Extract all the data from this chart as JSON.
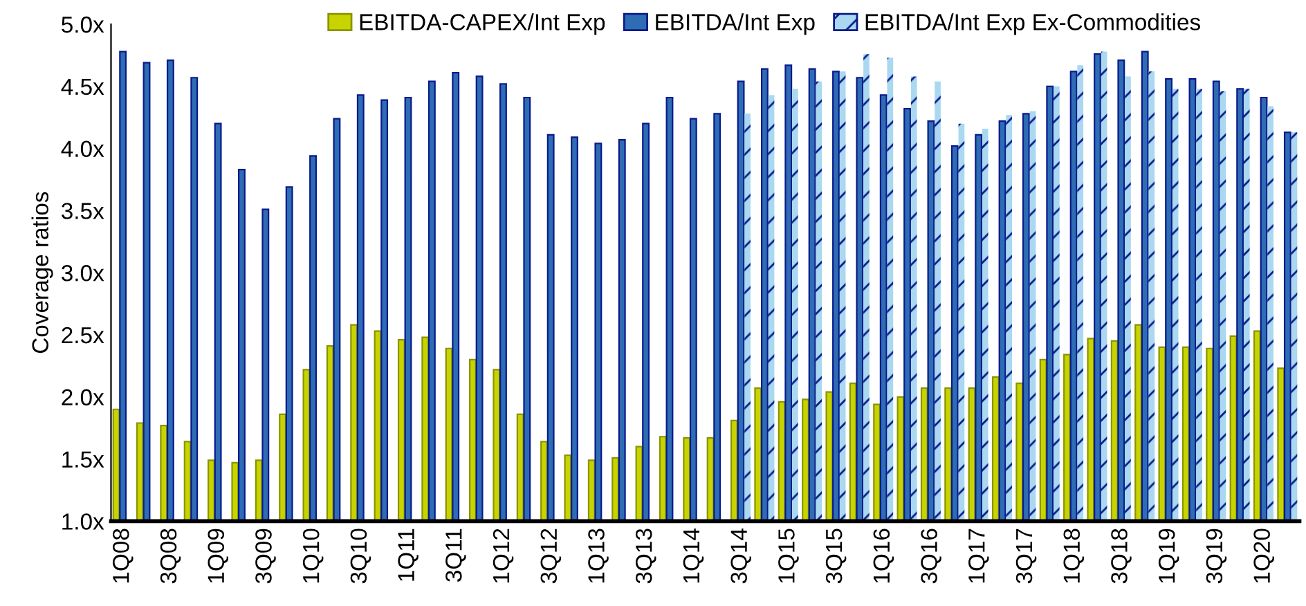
{
  "chart_data": {
    "type": "bar",
    "ylabel": "Coverage ratios",
    "categories": [
      "1Q08",
      null,
      "3Q08",
      null,
      "1Q09",
      null,
      "3Q09",
      null,
      "1Q10",
      null,
      "3Q10",
      null,
      "1Q11",
      null,
      "3Q11",
      null,
      "1Q12",
      null,
      "3Q12",
      null,
      "1Q13",
      null,
      "3Q13",
      null,
      "1Q14",
      null,
      "3Q14",
      null,
      "1Q15",
      null,
      "3Q15",
      null,
      "1Q16",
      null,
      "3Q16",
      null,
      "1Q17",
      null,
      "3Q17",
      null,
      "1Q18",
      null,
      "3Q18",
      null,
      "1Q19",
      null,
      "3Q19",
      null,
      "1Q20",
      null
    ],
    "series": [
      {
        "name": "EBITDA-CAPEX/Int Exp",
        "color": "#c8d400",
        "values": [
          1.9,
          1.79,
          1.77,
          1.64,
          1.49,
          1.47,
          1.49,
          1.86,
          2.22,
          2.41,
          2.58,
          2.53,
          2.46,
          2.48,
          2.39,
          2.3,
          2.22,
          1.86,
          1.64,
          1.53,
          1.49,
          1.51,
          1.6,
          1.68,
          1.67,
          1.67,
          1.81,
          2.07,
          1.96,
          1.98,
          2.04,
          2.11,
          1.94,
          2.0,
          2.07,
          2.07,
          2.07,
          2.16,
          2.11,
          2.3,
          2.34,
          2.47,
          2.45,
          2.58,
          2.4,
          2.4,
          2.39,
          2.49,
          2.53,
          2.23
        ]
      },
      {
        "name": "EBITDA/Int Exp",
        "color": "#2e6db4",
        "values": [
          4.78,
          4.69,
          4.71,
          4.57,
          4.2,
          3.83,
          3.51,
          3.69,
          3.94,
          4.24,
          4.43,
          4.39,
          4.41,
          4.54,
          4.61,
          4.58,
          4.52,
          4.41,
          4.11,
          4.09,
          4.04,
          4.07,
          4.2,
          4.41,
          4.24,
          4.28,
          4.54,
          4.64,
          4.67,
          4.64,
          4.62,
          4.57,
          4.43,
          4.32,
          4.22,
          4.02,
          4.11,
          4.22,
          4.28,
          4.5,
          4.62,
          4.76,
          4.71,
          4.78,
          4.56,
          4.56,
          4.54,
          4.48,
          4.41,
          4.13
        ]
      },
      {
        "name": "EBITDA/Int Exp Ex-Commodities",
        "color": "#a9d8f0",
        "values": [
          null,
          null,
          null,
          null,
          null,
          null,
          null,
          null,
          null,
          null,
          null,
          null,
          null,
          null,
          null,
          null,
          null,
          null,
          null,
          null,
          null,
          null,
          null,
          null,
          null,
          null,
          4.28,
          4.43,
          4.48,
          4.54,
          4.62,
          4.76,
          4.73,
          4.58,
          4.54,
          4.2,
          4.16,
          4.27,
          4.3,
          4.5,
          4.67,
          4.78,
          4.58,
          4.62,
          4.48,
          4.48,
          4.46,
          4.48,
          4.34,
          4.13
        ]
      }
    ],
    "ylim": [
      1.0,
      5.0
    ],
    "yticks": [
      {
        "value": 1.0,
        "label": "1.0x"
      },
      {
        "value": 1.5,
        "label": "1.5x"
      },
      {
        "value": 2.0,
        "label": "2.0x"
      },
      {
        "value": 2.5,
        "label": "2.5x"
      },
      {
        "value": 3.0,
        "label": "3.0x"
      },
      {
        "value": 3.5,
        "label": "3.5x"
      },
      {
        "value": 4.0,
        "label": "4.0x"
      },
      {
        "value": 4.5,
        "label": "4.5x"
      },
      {
        "value": 5.0,
        "label": "5.0x"
      }
    ],
    "grid": false,
    "legend": "top"
  }
}
